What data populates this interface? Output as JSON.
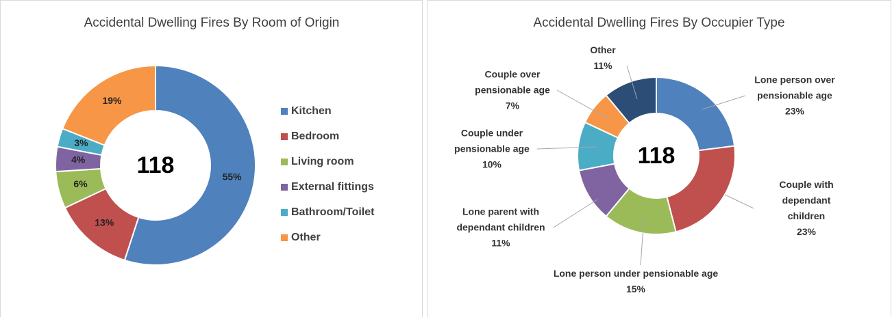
{
  "chart_data": [
    {
      "type": "donut",
      "title": "Accidental Dwelling Fires By Room of Origin",
      "total": 118,
      "categories": [
        "Kitchen",
        "Bedroom",
        "Living room",
        "External fittings",
        "Bathroom/Toilet",
        "Other"
      ],
      "values": [
        55,
        13,
        6,
        4,
        3,
        19
      ],
      "value_labels": [
        "55%",
        "13%",
        "6%",
        "4%",
        "3%",
        "19%"
      ],
      "colors": [
        "#4f81bd",
        "#c0504d",
        "#9bbb59",
        "#8064a2",
        "#4bacc6",
        "#f79646"
      ],
      "legend": "right"
    },
    {
      "type": "donut",
      "title": "Accidental Dwelling Fires By Occupier Type",
      "total": 118,
      "categories": [
        "Lone person over pensionable age",
        "Couple with dependant children",
        "Lone person under pensionable age",
        "Lone parent with dependant children",
        "Couple under pensionable age",
        "Couple over pensionable age",
        "Other"
      ],
      "values": [
        23,
        23,
        15,
        11,
        10,
        7,
        11
      ],
      "value_labels": [
        "23%",
        "23%",
        "15%",
        "11%",
        "10%",
        "7%",
        "11%"
      ],
      "colors": [
        "#4f81bd",
        "#c0504d",
        "#9bbb59",
        "#8064a2",
        "#4bacc6",
        "#f79646",
        "#2c4d75"
      ],
      "legend": "none"
    }
  ]
}
